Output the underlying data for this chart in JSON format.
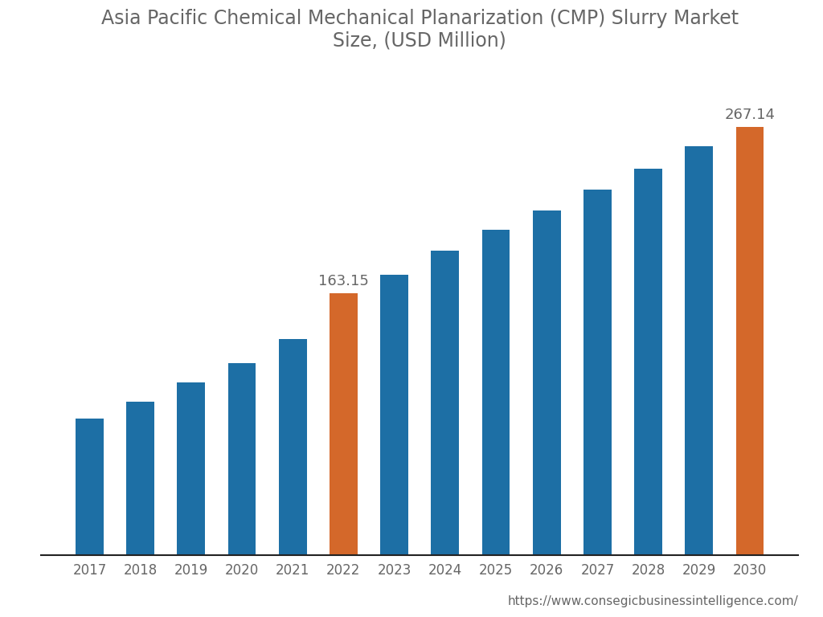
{
  "title": "Asia Pacific Chemical Mechanical Planarization (CMP) Slurry Market\nSize, (USD Million)",
  "years": [
    2017,
    2018,
    2019,
    2020,
    2021,
    2022,
    2023,
    2024,
    2025,
    2026,
    2027,
    2028,
    2029,
    2030
  ],
  "values": [
    85,
    96,
    108,
    120,
    135,
    163.15,
    175,
    190,
    203,
    215,
    228,
    241,
    255,
    267.14
  ],
  "bar_colors": [
    "#1d6fa5",
    "#1d6fa5",
    "#1d6fa5",
    "#1d6fa5",
    "#1d6fa5",
    "#d4682a",
    "#1d6fa5",
    "#1d6fa5",
    "#1d6fa5",
    "#1d6fa5",
    "#1d6fa5",
    "#1d6fa5",
    "#1d6fa5",
    "#d4682a"
  ],
  "labeled_bars": [
    5,
    13
  ],
  "labeled_values": [
    "163.15",
    "267.14"
  ],
  "background_color": "#ffffff",
  "text_color": "#666666",
  "title_fontsize": 17,
  "tick_fontsize": 12,
  "label_fontsize": 13,
  "footer_text": "https://www.consegicbusinessintelligence.com/",
  "footer_fontsize": 11,
  "bar_width": 0.55,
  "ylim_max": 300,
  "bottom_spine_color": "#222222"
}
